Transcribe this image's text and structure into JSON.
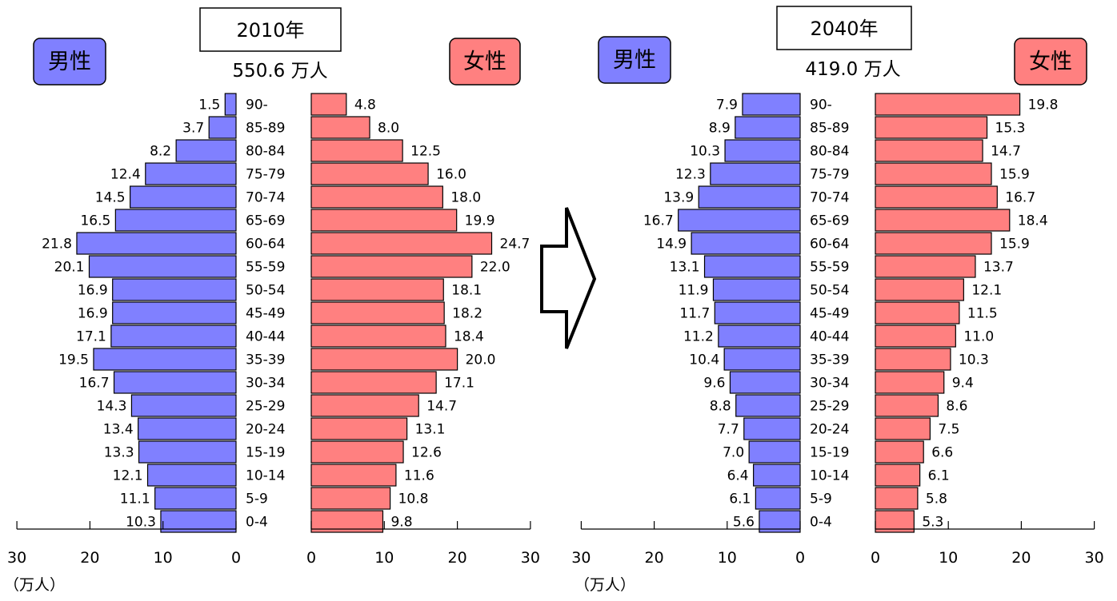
{
  "age_groups": [
    "90-",
    "85-89",
    "80-84",
    "75-79",
    "70-74",
    "65-69",
    "60-64",
    "55-59",
    "50-54",
    "45-49",
    "40-44",
    "35-39",
    "30-34",
    "25-29",
    "20-24",
    "15-19",
    "10-14",
    "5-9",
    "0-4"
  ],
  "labels": {
    "male": "男性",
    "female": "女性",
    "unit": "（万人）"
  },
  "colors": {
    "male": "#8080FF",
    "female": "#FF8080"
  },
  "chart_data": [
    {
      "type": "bar",
      "title": "2010年",
      "total": "550.6 万人",
      "xlim": [
        0,
        30
      ],
      "x_ticks": [
        "30",
        "20",
        "10",
        "0"
      ],
      "x_ticks_right": [
        "0",
        "10",
        "20",
        "30"
      ],
      "series": [
        {
          "name": "男性",
          "values": [
            1.5,
            3.7,
            8.2,
            12.4,
            14.5,
            16.5,
            21.8,
            20.1,
            16.9,
            16.9,
            17.1,
            19.5,
            16.7,
            14.3,
            13.4,
            13.3,
            12.1,
            11.1,
            10.3
          ]
        },
        {
          "name": "女性",
          "values": [
            4.8,
            8.0,
            12.5,
            16.0,
            18.0,
            19.9,
            24.7,
            22.0,
            18.1,
            18.2,
            18.4,
            20.0,
            17.1,
            14.7,
            13.1,
            12.6,
            11.6,
            10.8,
            9.8
          ]
        }
      ],
      "value_labels": {
        "male": [
          "1.5",
          "3.7",
          "8.2",
          "12.4",
          "14.5",
          "16.5",
          "21.8",
          "20.1",
          "16.9",
          "16.9",
          "17.1",
          "19.5",
          "16.7",
          "14.3",
          "13.4",
          "13.3",
          "12.1",
          "11.1",
          "10.3"
        ],
        "female": [
          "4.8",
          "8.0",
          "12.5",
          "16.0",
          "18.0",
          "19.9",
          "24.7",
          "22.0",
          "18.1",
          "18.2",
          "18.4",
          "20.0",
          "17.1",
          "14.7",
          "13.1",
          "12.6",
          "11.6",
          "10.8",
          "9.8"
        ]
      }
    },
    {
      "type": "bar",
      "title": "2040年",
      "total": "419.0 万人",
      "xlim": [
        0,
        30
      ],
      "x_ticks": [
        "30",
        "20",
        "10",
        "0"
      ],
      "x_ticks_right": [
        "0",
        "10",
        "20",
        "30"
      ],
      "series": [
        {
          "name": "男性",
          "values": [
            7.9,
            8.9,
            10.3,
            12.3,
            13.9,
            16.7,
            14.9,
            13.1,
            11.9,
            11.7,
            11.2,
            10.4,
            9.6,
            8.8,
            7.7,
            7.0,
            6.4,
            6.1,
            5.6
          ]
        },
        {
          "name": "女性",
          "values": [
            19.8,
            15.3,
            14.7,
            15.9,
            16.7,
            18.4,
            15.9,
            13.7,
            12.1,
            11.5,
            11.0,
            10.3,
            9.4,
            8.6,
            7.5,
            6.6,
            6.1,
            5.8,
            5.3
          ]
        }
      ],
      "value_labels": {
        "male": [
          "7.9",
          "8.9",
          "10.3",
          "12.3",
          "13.9",
          "16.7",
          "14.9",
          "13.1",
          "11.9",
          "11.7",
          "11.2",
          "10.4",
          "9.6",
          "8.8",
          "7.7",
          "7.0",
          "6.4",
          "6.1",
          "5.6"
        ],
        "female": [
          "19.8",
          "15.3",
          "14.7",
          "15.9",
          "16.7",
          "18.4",
          "15.9",
          "13.7",
          "12.1",
          "11.5",
          "11.0",
          "10.3",
          "9.4",
          "8.6",
          "7.5",
          "6.6",
          "6.1",
          "5.8",
          "5.3"
        ]
      }
    }
  ]
}
